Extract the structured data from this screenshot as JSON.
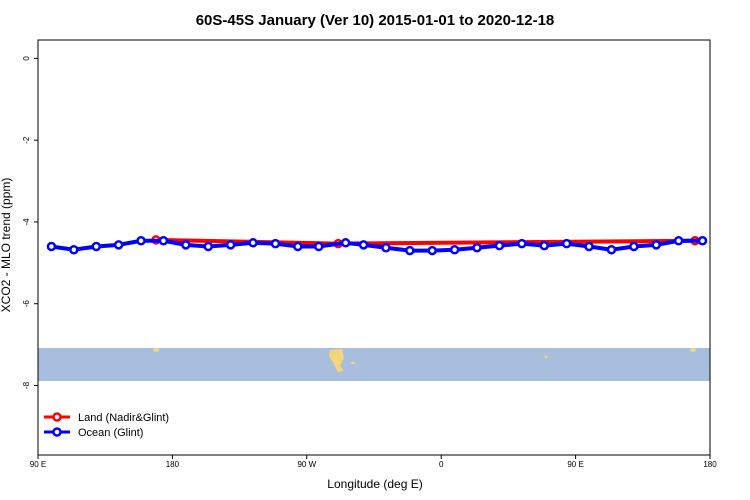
{
  "chart_data": {
    "type": "line",
    "title": "60S-45S January (Ver 10)   2015-01-01 to 2020-12-18",
    "x_label": "Longitude (deg E)",
    "y_label": "XCO2 - MLO trend (ppm)",
    "xlim": [
      90,
      540
    ],
    "ylim": [
      -9.7,
      0.45
    ],
    "xticks": [
      {
        "value": 90,
        "label": "90 E"
      },
      {
        "value": 180,
        "label": "180"
      },
      {
        "value": 270,
        "label": "90 W"
      },
      {
        "value": 360,
        "label": "0"
      },
      {
        "value": 450,
        "label": "90 E"
      },
      {
        "value": 540,
        "label": "180"
      }
    ],
    "yticks": [
      0,
      -2,
      -4,
      -6,
      -8
    ],
    "legend": "bottom-left",
    "series": [
      {
        "name": "Land (Nadir&Glint)",
        "color": "#ff0000",
        "x": [
          169,
          291,
          530
        ],
        "values": [
          -4.44,
          -4.53,
          -4.46
        ]
      },
      {
        "name": "Ocean (Glint)",
        "color": "#0000ff",
        "x": [
          99,
          114,
          129,
          144,
          159,
          174,
          189,
          204,
          219,
          234,
          249,
          264,
          278,
          296,
          308,
          323,
          339,
          354,
          369,
          384,
          399,
          414,
          429,
          444,
          459,
          474,
          489,
          504,
          519,
          535
        ],
        "values": [
          -4.6,
          -4.68,
          -4.6,
          -4.56,
          -4.46,
          -4.46,
          -4.56,
          -4.6,
          -4.56,
          -4.51,
          -4.53,
          -4.6,
          -4.6,
          -4.51,
          -4.56,
          -4.63,
          -4.7,
          -4.7,
          -4.68,
          -4.63,
          -4.58,
          -4.53,
          -4.58,
          -4.53,
          -4.6,
          -4.68,
          -4.6,
          -4.56,
          -4.46,
          -4.46
        ]
      }
    ]
  }
}
